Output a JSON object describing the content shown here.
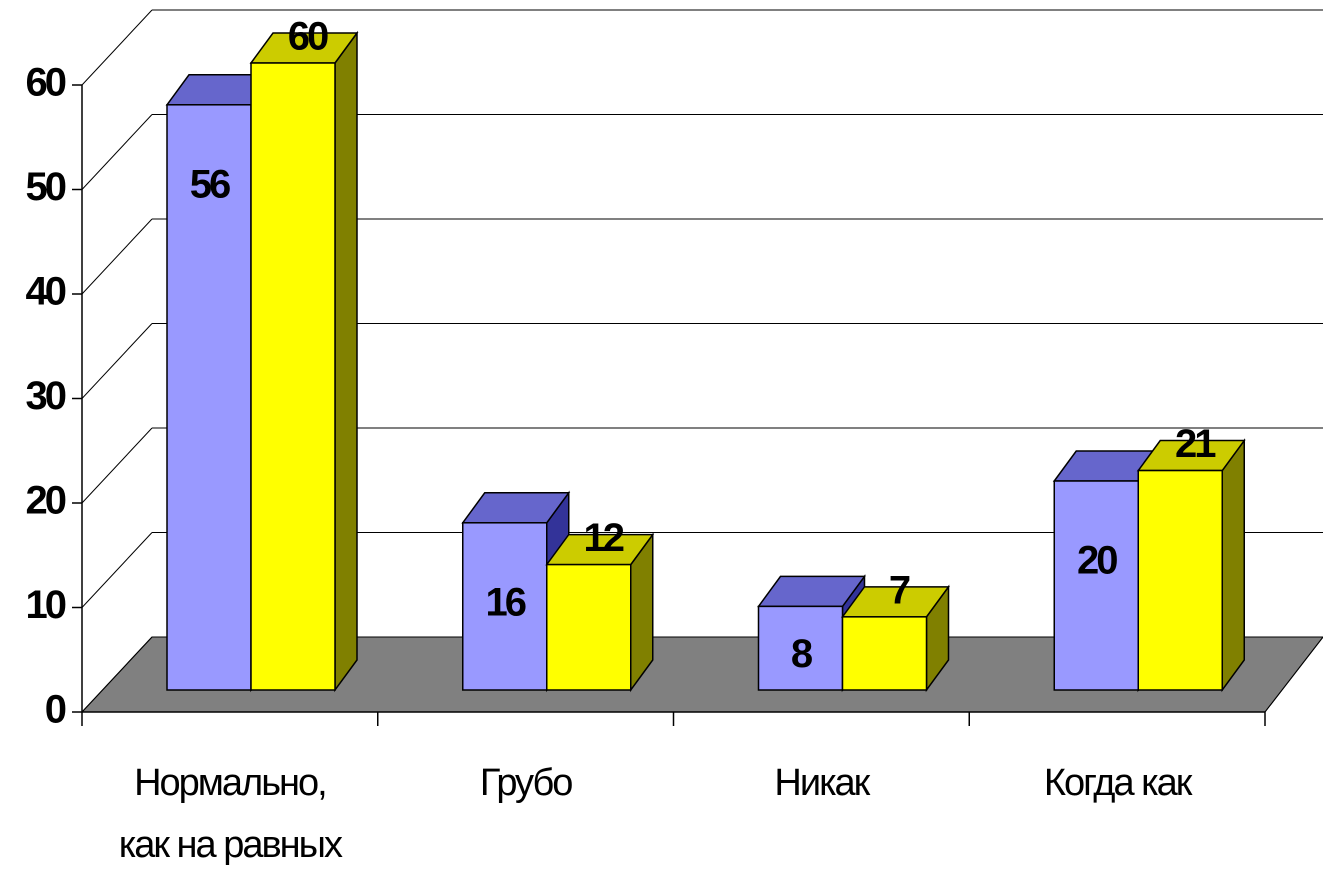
{
  "chart_data": {
    "type": "bar3d",
    "categories": [
      "Нормально,\nкак на равных",
      "Грубо",
      "Никак",
      "Когда как"
    ],
    "series": [
      {
        "color": "#9999ff",
        "values": [
          56,
          16,
          8,
          20
        ]
      },
      {
        "color": "#ffff00",
        "values": [
          60,
          12,
          7,
          21
        ]
      }
    ],
    "ylim": [
      0,
      60
    ],
    "yticks": [
      0,
      10,
      20,
      30,
      40,
      50,
      60
    ],
    "grid": true
  }
}
